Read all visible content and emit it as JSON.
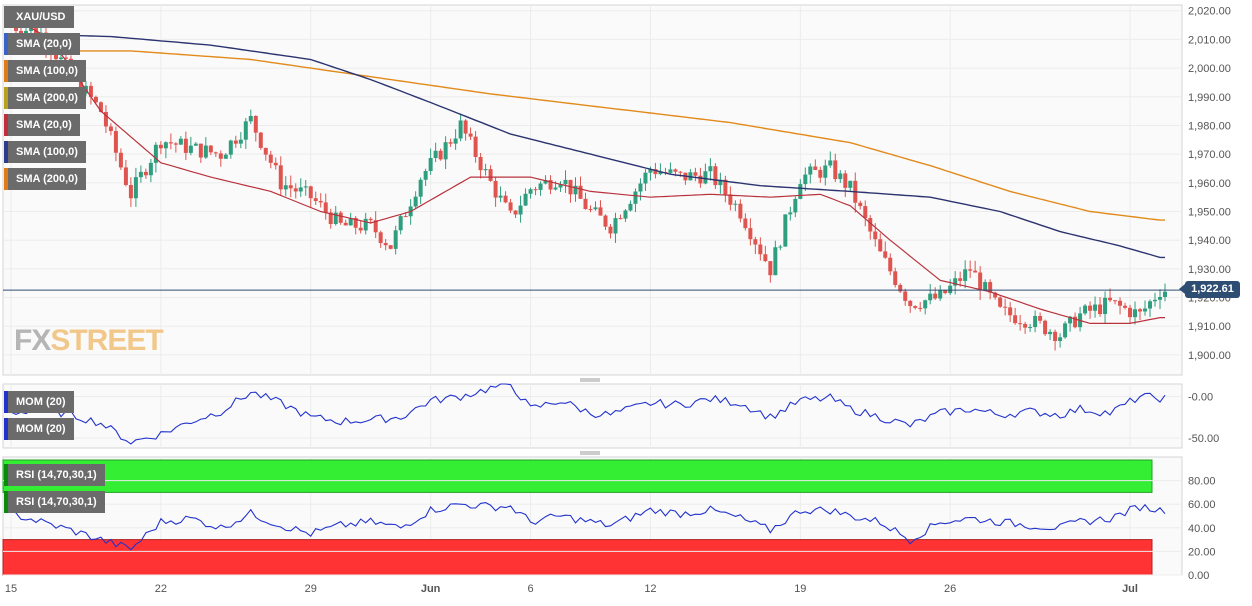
{
  "watermark": {
    "fx": "FX",
    "street": "STREET"
  },
  "legends": {
    "main": [
      {
        "label": "XAU/USD",
        "color": "#6b6b6b"
      },
      {
        "label": "SMA (20,0)",
        "color": "#3a63c9"
      },
      {
        "label": "SMA (100,0)",
        "color": "#e07b1a"
      },
      {
        "label": "SMA (200,0)",
        "color": "#b8a020"
      },
      {
        "label": "SMA (20,0)",
        "color": "#c0303c"
      },
      {
        "label": "SMA (100,0)",
        "color": "#2c3e8a"
      },
      {
        "label": "SMA (200,0)",
        "color": "#e07b1a"
      }
    ],
    "mom": [
      {
        "label": "MOM (20)",
        "color": "#2233cc"
      },
      {
        "label": "MOM (20)",
        "color": "#2233cc"
      }
    ],
    "rsi": [
      {
        "label": "RSI (14,70,30,1)",
        "color": "#0a8a0a"
      },
      {
        "label": "RSI (14,70,30,1)",
        "color": "#0a8a0a"
      }
    ]
  },
  "colors": {
    "bull": "#2f9e7f",
    "bear": "#e0544f",
    "sma20": "#b8323c",
    "sma100": "#2c3470",
    "sma200": "#e28a1c",
    "indicator": "#2233cc",
    "rsi_overbought": "#33ee33",
    "rsi_oversold": "#ff3333",
    "price_line": "#2e4d73"
  },
  "chart_data": [
    {
      "type": "candlestick",
      "symbol": "XAU/USD",
      "last_price": 1922.61,
      "last_price_label": "1,922.61",
      "ylim": [
        1893,
        2022
      ],
      "y_ticks": [
        1900,
        1910,
        1920,
        1930,
        1940,
        1950,
        1960,
        1970,
        1980,
        1990,
        2000,
        2010,
        2020
      ],
      "y_tick_labels": [
        "1,900.00",
        "1,910.00",
        "1,920.00",
        "1,930.00",
        "1,940.00",
        "1,950.00",
        "1,960.00",
        "1,970.00",
        "1,980.00",
        "1,990.00",
        "2,000.00",
        "2,010.00",
        "2,020.00"
      ],
      "x_labels": [
        "15",
        "22",
        "29",
        "Jun",
        "6",
        "12",
        "19",
        "26",
        "Jul"
      ],
      "x_label_index": [
        0,
        30,
        60,
        84,
        104,
        128,
        158,
        188,
        224
      ],
      "candles_total": 232,
      "close_anchors": [
        [
          0,
          2015
        ],
        [
          6,
          2012
        ],
        [
          12,
          1998
        ],
        [
          18,
          1985
        ],
        [
          24,
          1956
        ],
        [
          30,
          1975
        ],
        [
          36,
          1972
        ],
        [
          42,
          1970
        ],
        [
          48,
          1982
        ],
        [
          54,
          1960
        ],
        [
          60,
          1955
        ],
        [
          66,
          1945
        ],
        [
          72,
          1945
        ],
        [
          76,
          1938
        ],
        [
          82,
          1962
        ],
        [
          88,
          1975
        ],
        [
          90,
          1980
        ],
        [
          96,
          1960
        ],
        [
          100,
          1948
        ],
        [
          104,
          1958
        ],
        [
          110,
          1962
        ],
        [
          116,
          1950
        ],
        [
          120,
          1945
        ],
        [
          128,
          1965
        ],
        [
          134,
          1962
        ],
        [
          140,
          1963
        ],
        [
          146,
          1950
        ],
        [
          152,
          1930
        ],
        [
          158,
          1962
        ],
        [
          164,
          1965
        ],
        [
          168,
          1958
        ],
        [
          174,
          1935
        ],
        [
          180,
          1918
        ],
        [
          186,
          1920
        ],
        [
          192,
          1930
        ],
        [
          198,
          1915
        ],
        [
          204,
          1912
        ],
        [
          210,
          1907
        ],
        [
          214,
          1914
        ],
        [
          220,
          1918
        ],
        [
          226,
          1914
        ],
        [
          230,
          1922.61
        ]
      ],
      "sma20_anchors": [
        [
          0,
          2018
        ],
        [
          8,
          2010
        ],
        [
          18,
          1985
        ],
        [
          30,
          1967
        ],
        [
          40,
          1962
        ],
        [
          52,
          1957
        ],
        [
          62,
          1950
        ],
        [
          72,
          1946
        ],
        [
          80,
          1950
        ],
        [
          92,
          1962
        ],
        [
          104,
          1962
        ],
        [
          116,
          1957
        ],
        [
          128,
          1955
        ],
        [
          140,
          1956
        ],
        [
          152,
          1955
        ],
        [
          162,
          1956
        ],
        [
          168,
          1952
        ],
        [
          176,
          1940
        ],
        [
          186,
          1926
        ],
        [
          196,
          1922
        ],
        [
          206,
          1916
        ],
        [
          216,
          1911
        ],
        [
          224,
          1911
        ],
        [
          230,
          1913
        ]
      ],
      "sma100_anchors": [
        [
          0,
          2012
        ],
        [
          20,
          2011
        ],
        [
          40,
          2008
        ],
        [
          60,
          2003
        ],
        [
          72,
          1996
        ],
        [
          84,
          1988
        ],
        [
          100,
          1977
        ],
        [
          116,
          1970
        ],
        [
          132,
          1963
        ],
        [
          150,
          1959
        ],
        [
          168,
          1957
        ],
        [
          184,
          1955
        ],
        [
          198,
          1950
        ],
        [
          210,
          1943
        ],
        [
          222,
          1938
        ],
        [
          230,
          1934
        ]
      ],
      "sma200_anchors": [
        [
          0,
          2006
        ],
        [
          24,
          2006
        ],
        [
          48,
          2003
        ],
        [
          72,
          1997
        ],
        [
          96,
          1991
        ],
        [
          120,
          1986
        ],
        [
          144,
          1981
        ],
        [
          168,
          1974
        ],
        [
          184,
          1966
        ],
        [
          200,
          1957
        ],
        [
          216,
          1950
        ],
        [
          230,
          1947
        ]
      ]
    },
    {
      "type": "line",
      "name": "MOM (20)",
      "ylim": [
        -62,
        15
      ],
      "y_ticks": [
        0,
        -50
      ],
      "y_tick_labels": [
        "-0.00",
        "-50.00"
      ],
      "anchors": [
        [
          0,
          -20
        ],
        [
          6,
          -15
        ],
        [
          12,
          -22
        ],
        [
          18,
          -32
        ],
        [
          24,
          -55
        ],
        [
          30,
          -45
        ],
        [
          36,
          -30
        ],
        [
          42,
          -18
        ],
        [
          48,
          5
        ],
        [
          54,
          -8
        ],
        [
          60,
          -25
        ],
        [
          66,
          -30
        ],
        [
          72,
          -28
        ],
        [
          78,
          -25
        ],
        [
          84,
          -5
        ],
        [
          90,
          0
        ],
        [
          96,
          10
        ],
        [
          100,
          15
        ],
        [
          104,
          -15
        ],
        [
          110,
          -5
        ],
        [
          116,
          -20
        ],
        [
          120,
          -22
        ],
        [
          128,
          -8
        ],
        [
          134,
          -10
        ],
        [
          140,
          -3
        ],
        [
          146,
          -8
        ],
        [
          152,
          -25
        ],
        [
          158,
          -5
        ],
        [
          164,
          -2
        ],
        [
          168,
          -15
        ],
        [
          174,
          -25
        ],
        [
          180,
          -35
        ],
        [
          186,
          -20
        ],
        [
          192,
          -15
        ],
        [
          198,
          -22
        ],
        [
          204,
          -18
        ],
        [
          210,
          -22
        ],
        [
          214,
          -15
        ],
        [
          220,
          -20
        ],
        [
          226,
          0
        ],
        [
          230,
          -2
        ]
      ]
    },
    {
      "type": "line",
      "name": "RSI (14,70,30,1)",
      "ylim": [
        0,
        100
      ],
      "overbought": 70,
      "oversold": 30,
      "y_ticks": [
        0,
        20,
        40,
        60,
        80
      ],
      "y_tick_labels": [
        "0.00",
        "20.00",
        "40.00",
        "60.00",
        "80.00"
      ],
      "anchors": [
        [
          0,
          52
        ],
        [
          6,
          45
        ],
        [
          12,
          38
        ],
        [
          18,
          30
        ],
        [
          24,
          22
        ],
        [
          30,
          45
        ],
        [
          36,
          48
        ],
        [
          42,
          40
        ],
        [
          48,
          52
        ],
        [
          54,
          42
        ],
        [
          60,
          35
        ],
        [
          66,
          42
        ],
        [
          72,
          45
        ],
        [
          78,
          40
        ],
        [
          84,
          55
        ],
        [
          90,
          60
        ],
        [
          96,
          58
        ],
        [
          100,
          58
        ],
        [
          104,
          45
        ],
        [
          110,
          50
        ],
        [
          116,
          45
        ],
        [
          120,
          42
        ],
        [
          128,
          55
        ],
        [
          134,
          52
        ],
        [
          140,
          55
        ],
        [
          146,
          48
        ],
        [
          152,
          38
        ],
        [
          158,
          55
        ],
        [
          164,
          55
        ],
        [
          168,
          50
        ],
        [
          174,
          45
        ],
        [
          180,
          30
        ],
        [
          186,
          45
        ],
        [
          192,
          48
        ],
        [
          198,
          45
        ],
        [
          204,
          42
        ],
        [
          210,
          40
        ],
        [
          214,
          45
        ],
        [
          220,
          48
        ],
        [
          226,
          58
        ],
        [
          230,
          55
        ]
      ]
    }
  ]
}
